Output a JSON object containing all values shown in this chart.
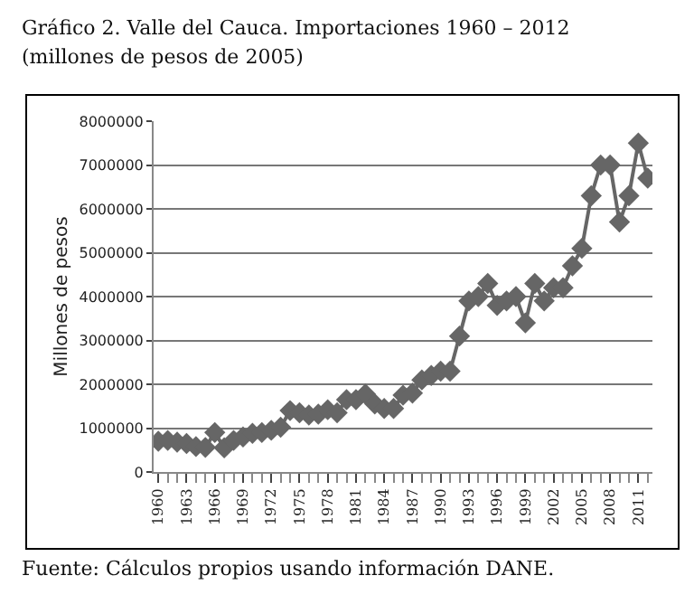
{
  "chart_data": {
    "type": "line",
    "title": "Gráfico 2. Valle del Cauca. Importaciones 1960 – 2012",
    "subtitle": "(millones de pesos de 2005)",
    "ylabel": "Millones de pesos",
    "annotations": [
      "Fuente: Cálculos propios usando información DANE."
    ],
    "categories": [
      "1960",
      null,
      null,
      "1963",
      null,
      null,
      "1966",
      null,
      null,
      "1969",
      null,
      null,
      "1972",
      null,
      null,
      "1975",
      null,
      null,
      "1978",
      null,
      null,
      "1981",
      null,
      null,
      "1984",
      null,
      null,
      "1987",
      null,
      null,
      "1990",
      null,
      null,
      "1993",
      null,
      null,
      "1996",
      null,
      null,
      "1999",
      null,
      null,
      "2002",
      null,
      null,
      "2005",
      null,
      null,
      "2008",
      null,
      null,
      "2011",
      null
    ],
    "series": [
      {
        "color": "#666666",
        "values": [
          700000,
          720000,
          680000,
          650000,
          580000,
          560000,
          900000,
          550000,
          720000,
          800000,
          880000,
          900000,
          950000,
          1020000,
          1400000,
          1350000,
          1300000,
          1320000,
          1420000,
          1350000,
          1650000,
          1650000,
          1780000,
          1550000,
          1450000,
          1450000,
          1750000,
          1800000,
          2100000,
          2200000,
          2300000,
          2300000,
          3100000,
          3900000,
          4000000,
          4300000,
          3800000,
          3900000,
          4000000,
          3400000,
          4300000,
          3900000,
          4200000,
          4200000,
          4700000,
          5100000,
          6300000,
          7000000,
          7000000,
          5700000,
          6300000,
          7500000,
          6700000
        ]
      }
    ],
    "ylim": [
      0,
      8000000
    ],
    "yticks": [
      0,
      1000000,
      2000000,
      3000000,
      4000000,
      5000000,
      6000000,
      7000000,
      8000000
    ],
    "grid": "y",
    "marker": "diamond",
    "line_style": "solid",
    "legend": false
  }
}
